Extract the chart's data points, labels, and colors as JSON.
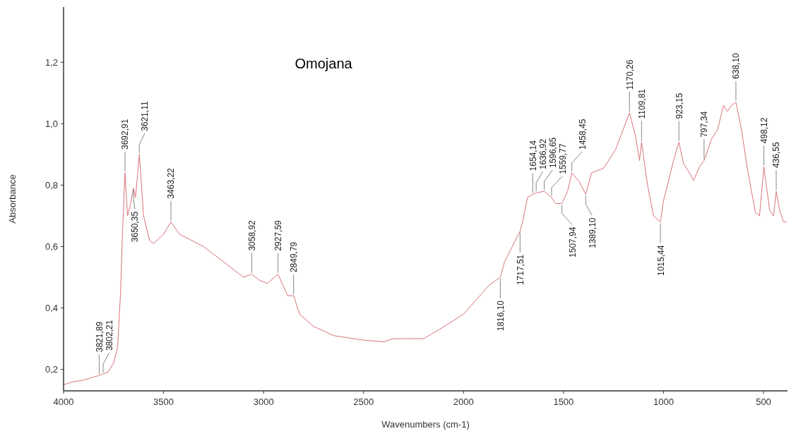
{
  "chart_data": {
    "type": "line",
    "title": "Omojana",
    "xlabel": "Wavenumbers (cm-1)",
    "ylabel": "Absorbance",
    "xlim": [
      4000,
      380
    ],
    "xticks": [
      4000,
      3500,
      3000,
      2500,
      2000,
      1500,
      1000,
      500
    ],
    "ylim": [
      0.13,
      1.38
    ],
    "yticks": [
      {
        "value": 0.2,
        "label": "0,2"
      },
      {
        "value": 0.4,
        "label": "0,4"
      },
      {
        "value": 0.6,
        "label": "0,6"
      },
      {
        "value": 0.8,
        "label": "0,8"
      },
      {
        "value": 1.0,
        "label": "1,0"
      },
      {
        "value": 1.2,
        "label": "1,2"
      }
    ],
    "grid": false,
    "marker": "none",
    "line_style": "solid",
    "series": [
      {
        "color": "#d9737a",
        "x": [
          4000,
          3950,
          3900,
          3850,
          3821.89,
          3802.21,
          3780,
          3750,
          3730,
          3715,
          3705,
          3692.91,
          3680,
          3665,
          3650.35,
          3640,
          3621.11,
          3600,
          3570,
          3550,
          3500,
          3463.22,
          3420,
          3300,
          3200,
          3100,
          3058.92,
          3020,
          2980,
          2927.59,
          2880,
          2849.79,
          2820,
          2750,
          2650,
          2600,
          2500,
          2400,
          2350,
          2300,
          2200,
          2120,
          2000,
          1870,
          1816.1,
          1795,
          1717.51,
          1705,
          1680,
          1654.14,
          1636.92,
          1596.65,
          1559.77,
          1540,
          1507.94,
          1480,
          1458.45,
          1420,
          1389.1,
          1360,
          1300,
          1240,
          1170.26,
          1140,
          1120,
          1109.81,
          1080,
          1050,
          1015.44,
          1000,
          980,
          950,
          923.15,
          900,
          870,
          850,
          820,
          797.34,
          760,
          730,
          700,
          680,
          660,
          638.1,
          610,
          580,
          540,
          520,
          498.12,
          470,
          450,
          436.55,
          420,
          400,
          385
        ],
        "values": [
          0.15,
          0.16,
          0.165,
          0.175,
          0.18,
          0.185,
          0.19,
          0.22,
          0.27,
          0.45,
          0.65,
          0.84,
          0.7,
          0.74,
          0.79,
          0.76,
          0.9,
          0.7,
          0.62,
          0.61,
          0.64,
          0.68,
          0.64,
          0.6,
          0.55,
          0.5,
          0.51,
          0.49,
          0.48,
          0.51,
          0.44,
          0.44,
          0.38,
          0.34,
          0.31,
          0.305,
          0.295,
          0.29,
          0.3,
          0.3,
          0.3,
          0.33,
          0.38,
          0.475,
          0.5,
          0.55,
          0.65,
          0.68,
          0.76,
          0.77,
          0.775,
          0.78,
          0.76,
          0.74,
          0.74,
          0.78,
          0.84,
          0.81,
          0.77,
          0.84,
          0.855,
          0.915,
          1.035,
          0.96,
          0.88,
          0.94,
          0.8,
          0.7,
          0.68,
          0.75,
          0.8,
          0.88,
          0.94,
          0.87,
          0.84,
          0.815,
          0.86,
          0.88,
          0.95,
          0.98,
          1.06,
          1.04,
          1.06,
          1.07,
          0.98,
          0.85,
          0.71,
          0.7,
          0.86,
          0.72,
          0.7,
          0.78,
          0.72,
          0.68,
          0.68
        ]
      }
    ],
    "annotations": [
      {
        "text": "3821,89",
        "x": 3821.89,
        "y": 0.18
      },
      {
        "text": "3802,21",
        "x": 3802.21,
        "y": 0.185
      },
      {
        "text": "3692,91",
        "x": 3692.91,
        "y": 0.84
      },
      {
        "text": "3650,35",
        "x": 3650.35,
        "y": 0.79
      },
      {
        "text": "3621,11",
        "x": 3621.11,
        "y": 0.9
      },
      {
        "text": "3463,22",
        "x": 3463.22,
        "y": 0.68
      },
      {
        "text": "3058,92",
        "x": 3058.92,
        "y": 0.51
      },
      {
        "text": "2927,59",
        "x": 2927.59,
        "y": 0.51
      },
      {
        "text": "2849,79",
        "x": 2849.79,
        "y": 0.44
      },
      {
        "text": "1816,10",
        "x": 1816.1,
        "y": 0.5
      },
      {
        "text": "1717,51",
        "x": 1717.51,
        "y": 0.65
      },
      {
        "text": "1654,14",
        "x": 1654.14,
        "y": 0.77
      },
      {
        "text": "1636,92",
        "x": 1636.92,
        "y": 0.775
      },
      {
        "text": "1596,65",
        "x": 1596.65,
        "y": 0.78
      },
      {
        "text": "1559,77",
        "x": 1559.77,
        "y": 0.76
      },
      {
        "text": "1507,94",
        "x": 1507.94,
        "y": 0.74
      },
      {
        "text": "1458,45",
        "x": 1458.45,
        "y": 0.84
      },
      {
        "text": "1389,10",
        "x": 1389.1,
        "y": 0.77
      },
      {
        "text": "1170,26",
        "x": 1170.26,
        "y": 1.035
      },
      {
        "text": "1109,81",
        "x": 1109.81,
        "y": 0.94
      },
      {
        "text": "1015,44",
        "x": 1015.44,
        "y": 0.68
      },
      {
        "text": "923,15",
        "x": 923.15,
        "y": 0.94
      },
      {
        "text": "797,34",
        "x": 797.34,
        "y": 0.88
      },
      {
        "text": "638,10",
        "x": 638.1,
        "y": 1.07
      },
      {
        "text": "498,12",
        "x": 498.12,
        "y": 0.86
      },
      {
        "text": "436,55",
        "x": 436.55,
        "y": 0.78
      }
    ]
  }
}
